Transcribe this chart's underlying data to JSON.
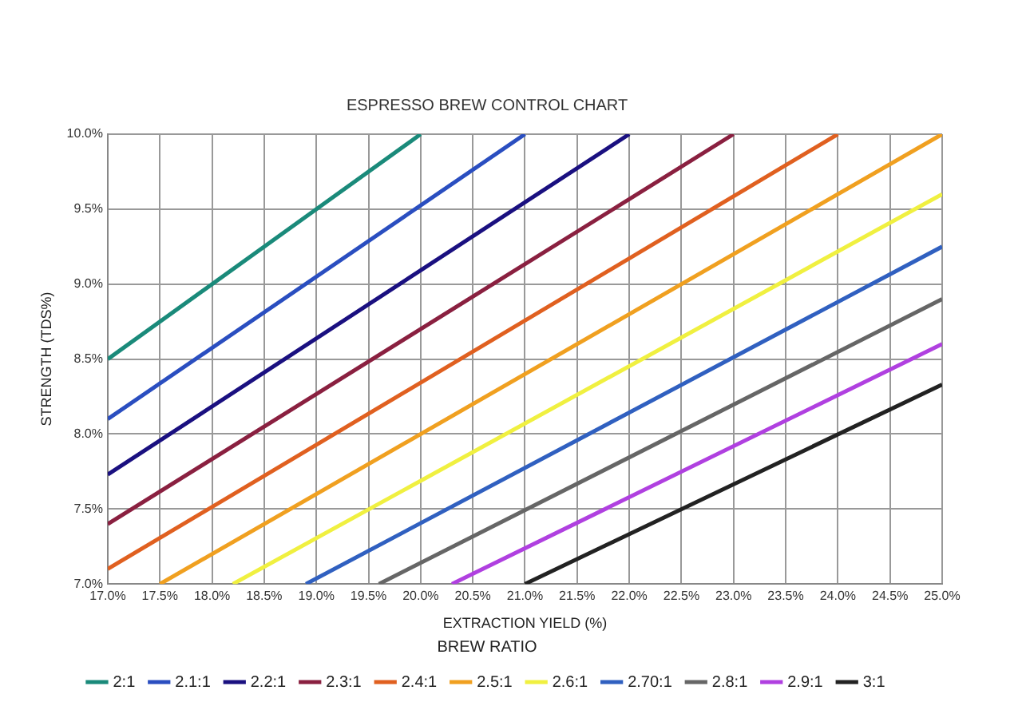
{
  "chart_data": {
    "type": "line",
    "title": "ESPRESSO BREW CONTROL CHART",
    "xlabel": "EXTRACTION YIELD (%)",
    "ylabel": "STRENGTH (TDS%)",
    "legend_title": "BREW RATIO",
    "legend": "bottom",
    "grid": true,
    "marker": "none",
    "line_style": "solid",
    "xlim": [
      17,
      25
    ],
    "ylim": [
      7,
      10
    ],
    "xticks": [
      {
        "value": 17,
        "label": "17.0%"
      },
      {
        "value": 17.5,
        "label": "17.5%"
      },
      {
        "value": 18,
        "label": "18.0%"
      },
      {
        "value": 18.5,
        "label": "18.5%"
      },
      {
        "value": 19,
        "label": "19.0%"
      },
      {
        "value": 19.5,
        "label": "19.5%"
      },
      {
        "value": 20,
        "label": "20.0%"
      },
      {
        "value": 20.5,
        "label": "20.5%"
      },
      {
        "value": 21,
        "label": "21.0%"
      },
      {
        "value": 21.5,
        "label": "21.5%"
      },
      {
        "value": 22,
        "label": "22.0%"
      },
      {
        "value": 22.5,
        "label": "22.5%"
      },
      {
        "value": 23,
        "label": "23.0%"
      },
      {
        "value": 23.5,
        "label": "23.5%"
      },
      {
        "value": 24,
        "label": "24.0%"
      },
      {
        "value": 24.5,
        "label": "24.5%"
      },
      {
        "value": 25,
        "label": "25.0%"
      }
    ],
    "yticks": [
      {
        "value": 7,
        "label": "7.0%"
      },
      {
        "value": 7.5,
        "label": "7.5%"
      },
      {
        "value": 8,
        "label": "8.0%"
      },
      {
        "value": 8.5,
        "label": "8.5%"
      },
      {
        "value": 9,
        "label": "9.0%"
      },
      {
        "value": 9.5,
        "label": "9.5%"
      },
      {
        "value": 10,
        "label": "10.0%"
      }
    ],
    "series": [
      {
        "name": "2:1",
        "color": "#1a8a7a",
        "x": [
          17,
          20
        ],
        "values": [
          8.5,
          10
        ]
      },
      {
        "name": "2.1:1",
        "color": "#2a4ec0",
        "x": [
          17,
          21
        ],
        "values": [
          8.1,
          10
        ]
      },
      {
        "name": "2.2:1",
        "color": "#1a1080",
        "x": [
          17,
          22
        ],
        "values": [
          7.73,
          10
        ]
      },
      {
        "name": "2.3:1",
        "color": "#8a2040",
        "x": [
          17,
          23
        ],
        "values": [
          7.4,
          10
        ]
      },
      {
        "name": "2.4:1",
        "color": "#e06020",
        "x": [
          17,
          24
        ],
        "values": [
          7.1,
          10
        ]
      },
      {
        "name": "2.5:1",
        "color": "#f0a020",
        "x": [
          17.5,
          25
        ],
        "values": [
          7,
          10
        ]
      },
      {
        "name": "2.6:1",
        "color": "#f0f040",
        "x": [
          18.2,
          25
        ],
        "values": [
          7,
          9.6
        ]
      },
      {
        "name": "2.70:1",
        "color": "#3060c0",
        "x": [
          18.9,
          25
        ],
        "values": [
          7,
          9.25
        ]
      },
      {
        "name": "2.8:1",
        "color": "#666666",
        "x": [
          19.6,
          25
        ],
        "values": [
          7,
          8.9
        ]
      },
      {
        "name": "2.9:1",
        "color": "#b040e0",
        "x": [
          20.3,
          25
        ],
        "values": [
          7,
          8.6
        ]
      },
      {
        "name": "3:1",
        "color": "#222222",
        "x": [
          21,
          25
        ],
        "values": [
          7,
          8.33
        ]
      }
    ]
  }
}
